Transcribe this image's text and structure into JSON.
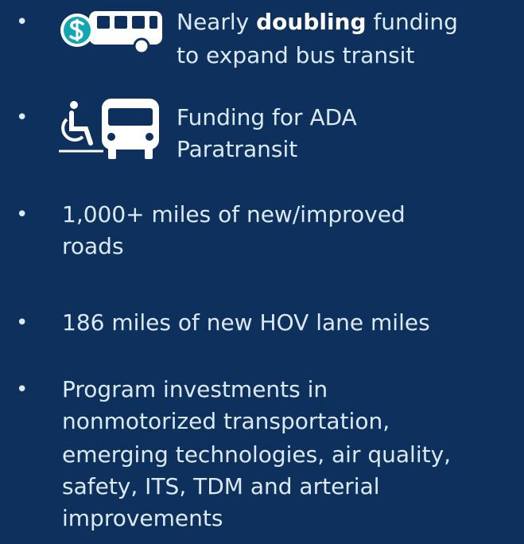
{
  "items": [
    {
      "bullet": "•",
      "icon": "bus-funding",
      "lines": [
        {
          "before": "Nearly",
          "bold": "doubling",
          "after": "funding"
        },
        "to expand bus transit"
      ]
    },
    {
      "bullet": "•",
      "icon": "paratransit",
      "lines": [
        "Funding for ADA",
        "Paratransit"
      ]
    },
    {
      "bullet": "•",
      "lines": [
        "1,000+ miles of new/improved",
        "roads"
      ]
    },
    {
      "bullet": "•",
      "lines": [
        "186 miles of new HOV lane miles"
      ]
    },
    {
      "bullet": "•",
      "lines": [
        "Program investments in",
        "nonmotorized transportation,",
        "emerging technologies, air quality,",
        "safety, ITS, TDM and arterial",
        "improvements"
      ]
    }
  ]
}
